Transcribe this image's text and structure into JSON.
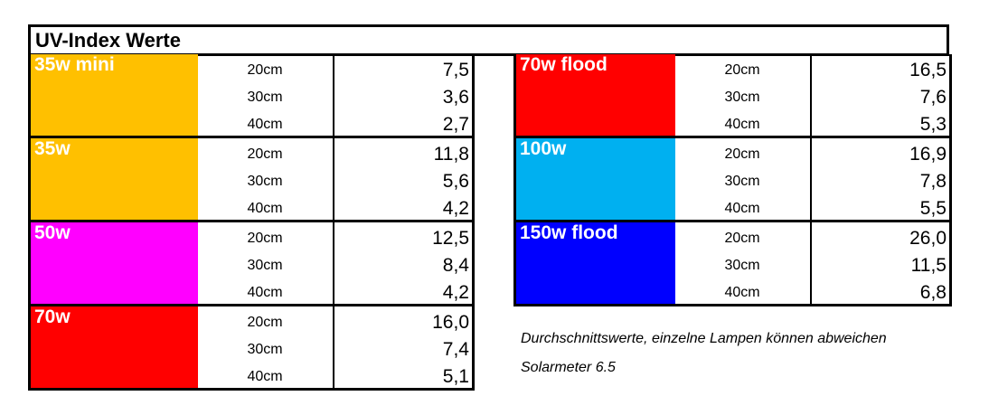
{
  "title": "UV-Index Werte",
  "left_groups": [
    {
      "lamp": "35w mini",
      "color": "#FFC000",
      "rows": [
        {
          "dist": "20cm",
          "val": "7,5"
        },
        {
          "dist": "30cm",
          "val": "3,6"
        },
        {
          "dist": "40cm",
          "val": "2,7"
        }
      ]
    },
    {
      "lamp": "35w",
      "color": "#FFC000",
      "rows": [
        {
          "dist": "20cm",
          "val": "11,8"
        },
        {
          "dist": "30cm",
          "val": "5,6"
        },
        {
          "dist": "40cm",
          "val": "4,2"
        }
      ]
    },
    {
      "lamp": "50w",
      "color": "#FF00FF",
      "rows": [
        {
          "dist": "20cm",
          "val": "12,5"
        },
        {
          "dist": "30cm",
          "val": "8,4"
        },
        {
          "dist": "40cm",
          "val": "4,2"
        }
      ]
    },
    {
      "lamp": "70w",
      "color": "#FF0000",
      "rows": [
        {
          "dist": "20cm",
          "val": "16,0"
        },
        {
          "dist": "30cm",
          "val": "7,4"
        },
        {
          "dist": "40cm",
          "val": "5,1"
        }
      ]
    }
  ],
  "right_groups": [
    {
      "lamp": "70w flood",
      "color": "#FF0000",
      "rows": [
        {
          "dist": "20cm",
          "val": "16,5"
        },
        {
          "dist": "30cm",
          "val": "7,6"
        },
        {
          "dist": "40cm",
          "val": "5,3"
        }
      ]
    },
    {
      "lamp": "100w",
      "color": "#00B0F0",
      "rows": [
        {
          "dist": "20cm",
          "val": "16,9"
        },
        {
          "dist": "30cm",
          "val": "7,8"
        },
        {
          "dist": "40cm",
          "val": "5,5"
        }
      ]
    },
    {
      "lamp": "150w flood",
      "color": "#0000FF",
      "rows": [
        {
          "dist": "20cm",
          "val": "26,0"
        },
        {
          "dist": "30cm",
          "val": "11,5"
        },
        {
          "dist": "40cm",
          "val": "6,8"
        }
      ]
    }
  ],
  "notes": {
    "line1": "Durchschnittswerte, einzelne Lampen können abweichen",
    "line2": "Solarmeter 6.5"
  }
}
